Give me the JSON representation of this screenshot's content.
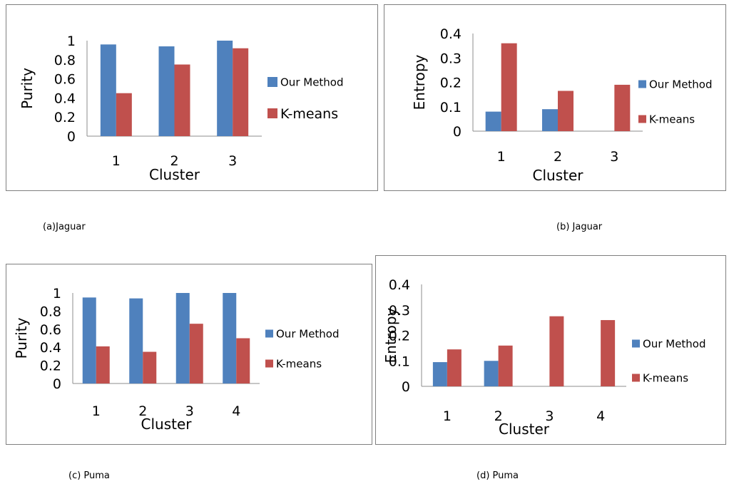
{
  "colors": {
    "our_method": "#4f81bd",
    "kmeans": "#c0504d",
    "border": "#7f7f7f"
  },
  "captions": {
    "a": "(a)Jaguar",
    "b": "(b) Jaguar",
    "c": "(c) Puma",
    "d": "(d) Puma"
  },
  "chart_data": [
    {
      "id": "a",
      "type": "bar",
      "categories": [
        "1",
        "2",
        "3"
      ],
      "series": [
        {
          "name": "Our Method",
          "values": [
            0.96,
            0.94,
            1.0
          ]
        },
        {
          "name": "K-means",
          "values": [
            0.45,
            0.75,
            0.92
          ]
        }
      ],
      "xlabel": "Cluster",
      "ylabel": "Purity",
      "ylim": [
        0,
        1
      ],
      "yticks": [
        "0",
        "0.2",
        "0.4",
        "0.6",
        "0.8",
        "1"
      ],
      "grid": false,
      "legend": "right"
    },
    {
      "id": "b",
      "type": "bar",
      "categories": [
        "1",
        "2",
        "3"
      ],
      "series": [
        {
          "name": "Our Method",
          "values": [
            0.08,
            0.09,
            0.0
          ]
        },
        {
          "name": "K-means",
          "values": [
            0.36,
            0.165,
            0.19
          ]
        }
      ],
      "xlabel": "Cluster",
      "ylabel": "Entropy",
      "ylim": [
        0,
        0.4
      ],
      "yticks": [
        "0",
        "0.1",
        "0.2",
        "0.3",
        "0.4"
      ],
      "grid": false,
      "legend": "right"
    },
    {
      "id": "c",
      "type": "bar",
      "categories": [
        "1",
        "2",
        "3",
        "4"
      ],
      "series": [
        {
          "name": "Our Method",
          "values": [
            0.95,
            0.94,
            1.0,
            1.0
          ]
        },
        {
          "name": "K-means",
          "values": [
            0.41,
            0.35,
            0.66,
            0.5
          ]
        }
      ],
      "xlabel": "Cluster",
      "ylabel": "Purity",
      "ylim": [
        0,
        1
      ],
      "yticks": [
        "0",
        "0.2",
        "0.4",
        "0.6",
        "0.8",
        "1"
      ],
      "grid": false,
      "legend": "right"
    },
    {
      "id": "d",
      "type": "bar",
      "categories": [
        "1",
        "2",
        "3",
        "4"
      ],
      "series": [
        {
          "name": "Our Method",
          "values": [
            0.095,
            0.1,
            0.0,
            0.0
          ]
        },
        {
          "name": "K-means",
          "values": [
            0.145,
            0.16,
            0.275,
            0.26
          ]
        }
      ],
      "xlabel": "Cluster",
      "ylabel": "Entropy",
      "ylim": [
        0,
        0.4
      ],
      "yticks": [
        "0",
        "0.1",
        "0.2",
        "0.3",
        "0.4"
      ],
      "grid": false,
      "legend": "right"
    }
  ]
}
